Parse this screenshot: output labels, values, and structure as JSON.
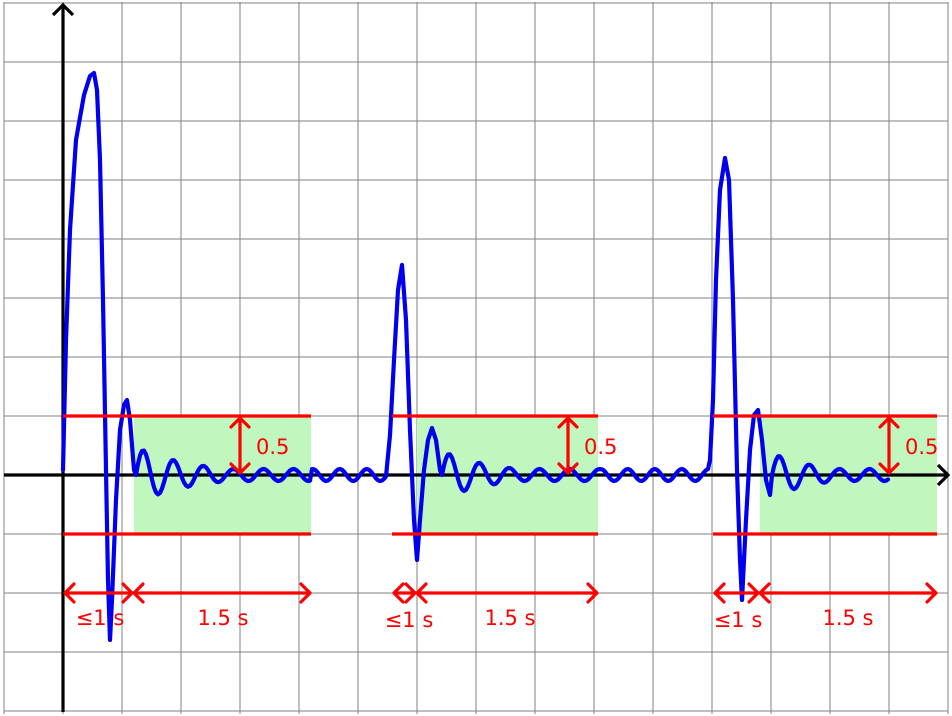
{
  "colors": {
    "signal": "#0000ee",
    "tolerance_line": "#ff0000",
    "tolerance_band": "#bff7bf",
    "grid": "#808080",
    "axis": "#000000"
  },
  "pulses": [
    {
      "amplitude_label": "0.5",
      "settle_label": "≤1 s",
      "window_label": "1.5 s"
    },
    {
      "amplitude_label": "0.5",
      "settle_label": "≤1 s",
      "window_label": "1.5 s"
    },
    {
      "amplitude_label": "0.5",
      "settle_label": "≤1 s",
      "window_label": "1.5 s"
    }
  ]
}
